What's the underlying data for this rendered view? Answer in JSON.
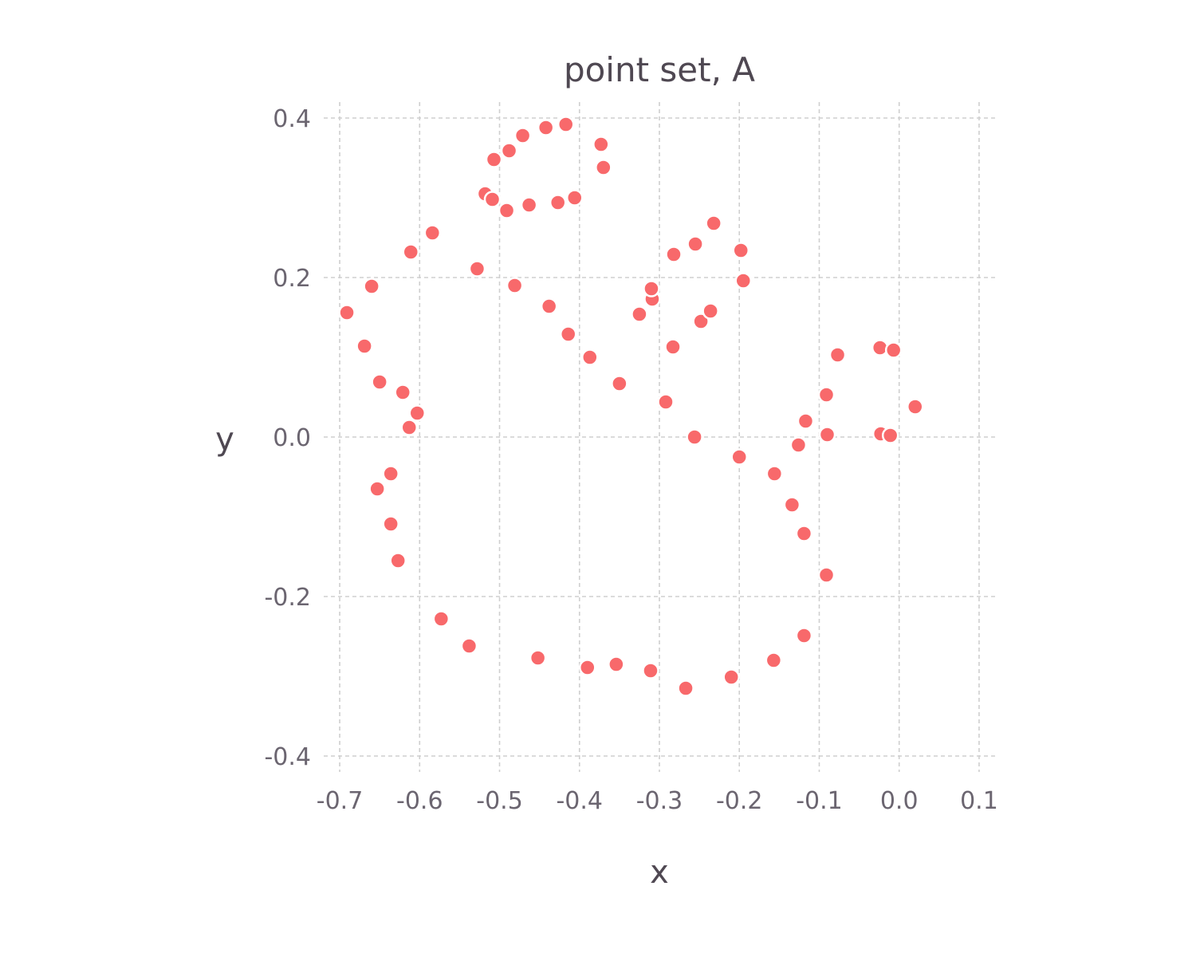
{
  "chart_data": {
    "type": "scatter",
    "title": "point set, A",
    "xlabel": "x",
    "ylabel": "y",
    "xlim": [
      -0.72,
      0.12
    ],
    "ylim": [
      -0.42,
      0.42
    ],
    "x_ticks": [
      -0.7,
      -0.6,
      -0.5,
      -0.4,
      -0.3,
      -0.2,
      -0.1,
      0.0,
      0.1
    ],
    "x_tick_labels": [
      "-0.7",
      "-0.6",
      "-0.5",
      "-0.4",
      "-0.3",
      "-0.2",
      "-0.1",
      "0.0",
      "0.1"
    ],
    "y_ticks": [
      -0.4,
      -0.2,
      0.0,
      0.2,
      0.4
    ],
    "y_tick_labels": [
      "-0.4",
      "-0.2",
      "0.0",
      "0.2",
      "0.4"
    ],
    "grid": true,
    "legend": "none",
    "point_color": "#f8696b",
    "series": [
      {
        "points": [
          [
            -0.691,
            0.156
          ],
          [
            -0.669,
            0.114
          ],
          [
            -0.66,
            0.189
          ],
          [
            -0.65,
            0.069
          ],
          [
            -0.653,
            -0.065
          ],
          [
            -0.636,
            -0.046
          ],
          [
            -0.636,
            -0.109
          ],
          [
            -0.627,
            -0.155
          ],
          [
            -0.621,
            0.056
          ],
          [
            -0.611,
            0.232
          ],
          [
            -0.613,
            0.012
          ],
          [
            -0.603,
            0.03
          ],
          [
            -0.584,
            0.256
          ],
          [
            -0.573,
            -0.228
          ],
          [
            -0.538,
            -0.262
          ],
          [
            -0.528,
            0.211
          ],
          [
            -0.518,
            0.305
          ],
          [
            -0.509,
            0.298
          ],
          [
            -0.507,
            0.348
          ],
          [
            -0.491,
            0.284
          ],
          [
            -0.488,
            0.359
          ],
          [
            -0.481,
            0.19
          ],
          [
            -0.471,
            0.378
          ],
          [
            -0.463,
            0.291
          ],
          [
            -0.452,
            -0.277
          ],
          [
            -0.442,
            0.388
          ],
          [
            -0.438,
            0.164
          ],
          [
            -0.427,
            0.294
          ],
          [
            -0.417,
            0.392
          ],
          [
            -0.414,
            0.129
          ],
          [
            -0.406,
            0.3
          ],
          [
            -0.39,
            -0.289
          ],
          [
            -0.387,
            0.1
          ],
          [
            -0.373,
            0.367
          ],
          [
            -0.37,
            0.338
          ],
          [
            -0.354,
            -0.285
          ],
          [
            -0.35,
            0.067
          ],
          [
            -0.325,
            0.154
          ],
          [
            -0.311,
            -0.293
          ],
          [
            -0.309,
            0.173
          ],
          [
            -0.31,
            0.186
          ],
          [
            -0.292,
            0.044
          ],
          [
            -0.283,
            0.113
          ],
          [
            -0.282,
            0.229
          ],
          [
            -0.267,
            -0.315
          ],
          [
            -0.256,
            0.0
          ],
          [
            -0.255,
            0.242
          ],
          [
            -0.248,
            0.145
          ],
          [
            -0.236,
            0.158
          ],
          [
            -0.232,
            0.268
          ],
          [
            -0.21,
            -0.301
          ],
          [
            -0.2,
            -0.025
          ],
          [
            -0.198,
            0.234
          ],
          [
            -0.195,
            0.196
          ],
          [
            -0.157,
            -0.28
          ],
          [
            -0.156,
            -0.046
          ],
          [
            -0.134,
            -0.085
          ],
          [
            -0.126,
            -0.01
          ],
          [
            -0.119,
            -0.121
          ],
          [
            -0.119,
            -0.249
          ],
          [
            -0.117,
            0.02
          ],
          [
            -0.091,
            -0.173
          ],
          [
            -0.091,
            0.053
          ],
          [
            -0.09,
            0.003
          ],
          [
            -0.077,
            0.103
          ],
          [
            -0.024,
            0.112
          ],
          [
            -0.023,
            0.004
          ],
          [
            -0.011,
            0.002
          ],
          [
            -0.007,
            0.109
          ],
          [
            0.02,
            0.038
          ]
        ]
      }
    ]
  }
}
